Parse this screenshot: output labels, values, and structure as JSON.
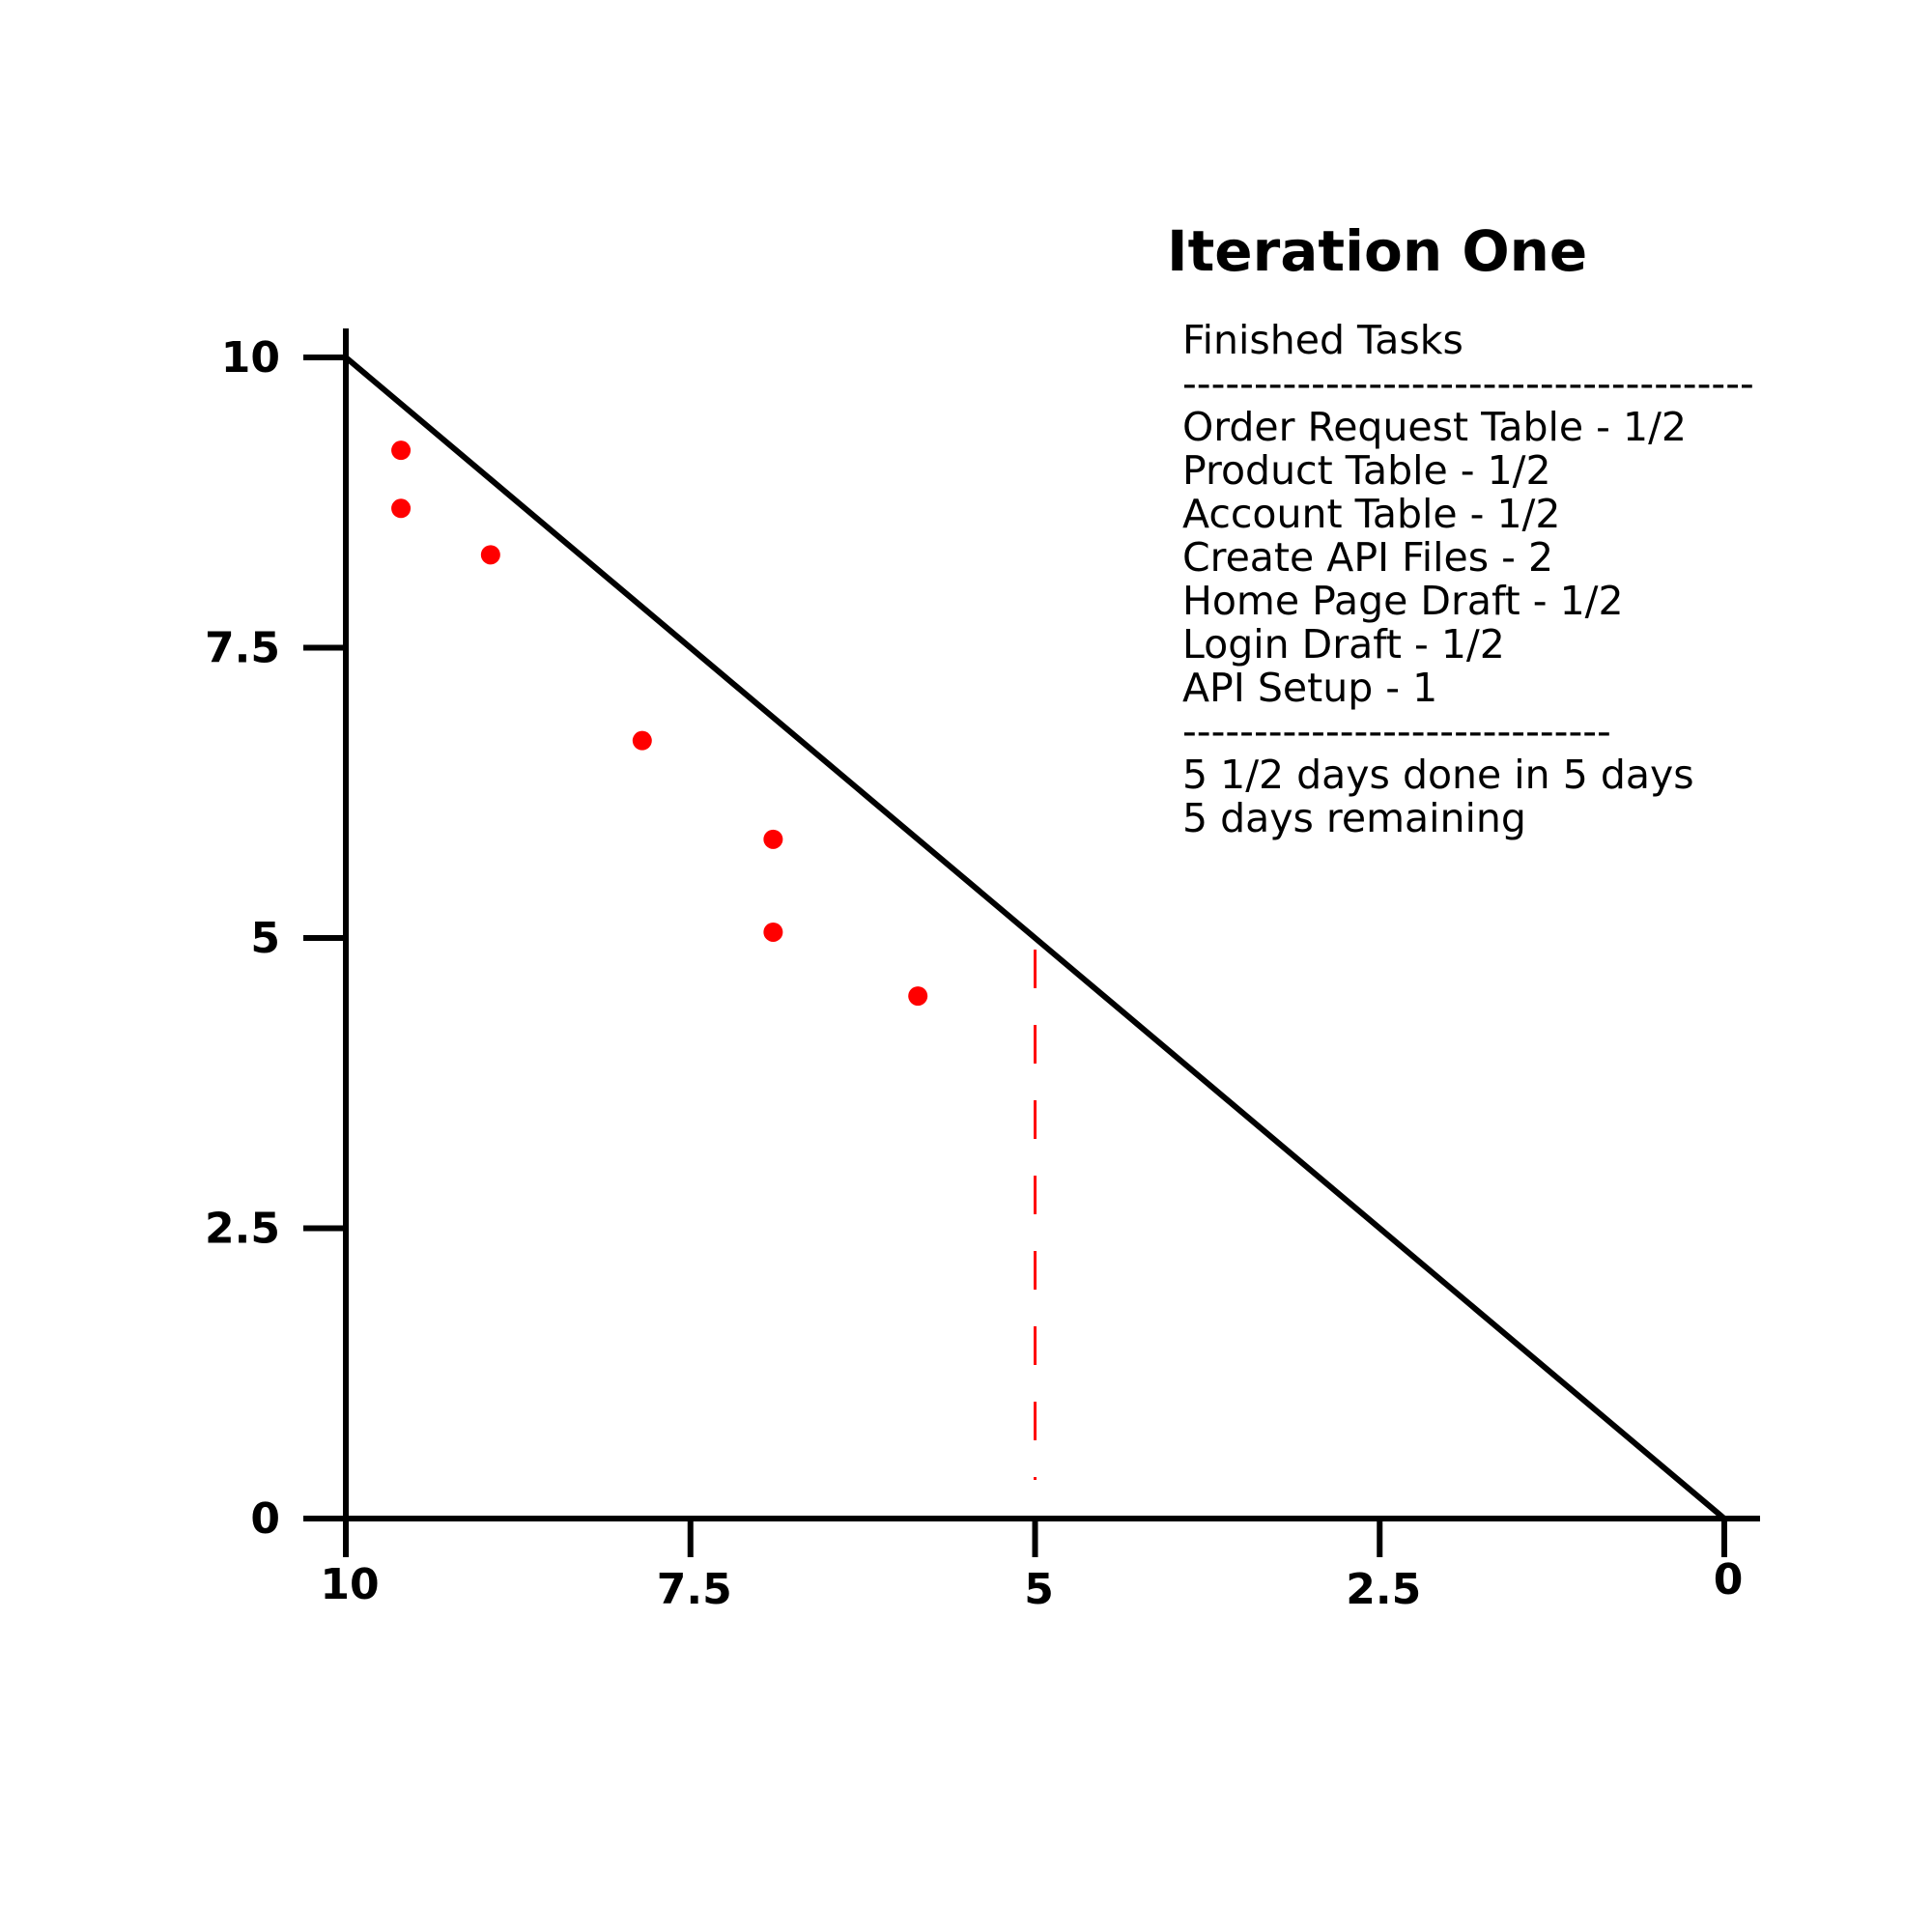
{
  "chart_data": {
    "type": "scatter",
    "title": "Iteration One",
    "xlabel": "",
    "ylabel": "",
    "xlim": [
      10,
      0
    ],
    "ylim": [
      0,
      10
    ],
    "x_ticks": [
      "10",
      "7.5",
      "5",
      "2.5",
      "0"
    ],
    "y_ticks": [
      "10",
      "7.5",
      "5",
      "2.5",
      "0"
    ],
    "ideal_line": {
      "x": [
        10,
        0
      ],
      "y": [
        10,
        0
      ],
      "color": "#000000"
    },
    "reference_line": {
      "x": 5,
      "y": [
        0,
        5
      ],
      "style": "dashed",
      "color": "#ff0000"
    },
    "series": [
      {
        "color": "#ff0000",
        "points": [
          {
            "x": 9.6,
            "y": 9.2
          },
          {
            "x": 9.6,
            "y": 8.7
          },
          {
            "x": 8.95,
            "y": 8.3
          },
          {
            "x": 7.85,
            "y": 6.7
          },
          {
            "x": 6.9,
            "y": 5.85
          },
          {
            "x": 6.9,
            "y": 5.05
          },
          {
            "x": 5.85,
            "y": 4.5
          }
        ]
      }
    ],
    "grid": false,
    "legend": "none"
  },
  "task_panel": {
    "heading": "Finished Tasks",
    "separator_top": "----------------------------------------",
    "tasks": [
      "Order Request Table - 1/2",
      "Product Table - 1/2",
      "Account Table - 1/2",
      "Create API Files - 2",
      "Home Page Draft - 1/2",
      "Login Draft - 1/2",
      "API Setup - 1"
    ],
    "separator_bottom": "------------------------------",
    "summary": [
      "5 1/2 days done in 5 days",
      "5 days remaining"
    ]
  }
}
